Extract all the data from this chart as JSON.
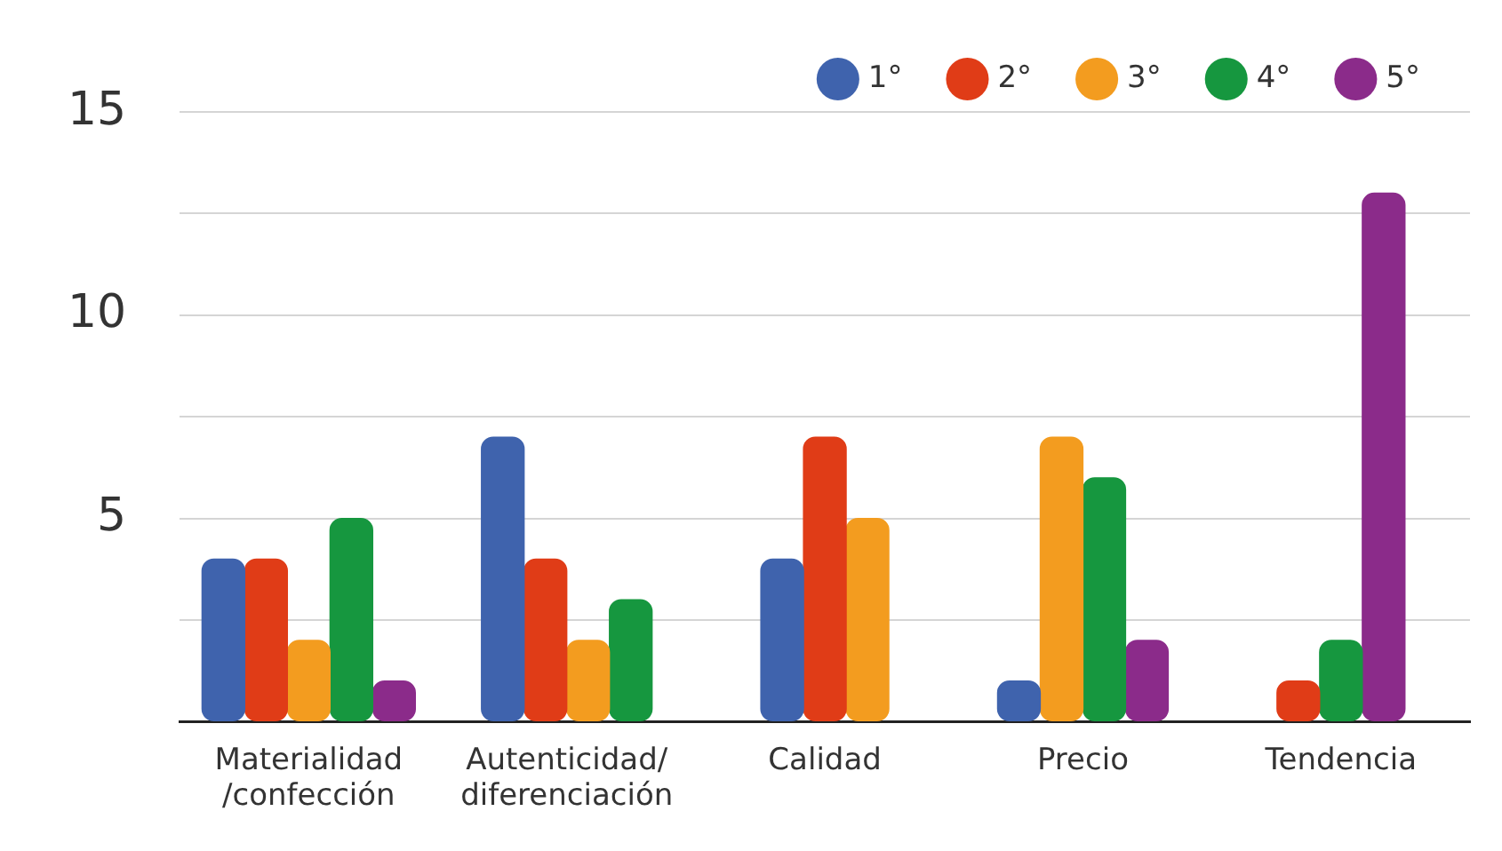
{
  "chart_data": {
    "type": "bar",
    "categories": [
      "Materialidad /confección",
      "Autenticidad/ diferenciación",
      "Calidad",
      "Precio",
      "Tendencia"
    ],
    "series": [
      {
        "name": "1°",
        "color": "#3f63ad",
        "values": [
          4,
          7,
          4,
          1,
          null
        ]
      },
      {
        "name": "2°",
        "color": "#e03c17",
        "values": [
          4,
          4,
          7,
          null,
          1
        ]
      },
      {
        "name": "3°",
        "color": "#f39c1f",
        "values": [
          2,
          2,
          5,
          7,
          null
        ]
      },
      {
        "name": "4°",
        "color": "#16973f",
        "values": [
          5,
          3,
          null,
          6,
          2
        ]
      },
      {
        "name": "5°",
        "color": "#8b2b8a",
        "values": [
          1,
          null,
          null,
          2,
          13
        ]
      }
    ],
    "ylim": [
      0,
      15
    ],
    "yticks": [
      {
        "value": 0,
        "label": null
      },
      {
        "value": 2.5,
        "label": null
      },
      5,
      {
        "value": 7.5,
        "label": null
      },
      10,
      {
        "value": 12.5,
        "label": null
      },
      15
    ],
    "grid": "y",
    "legend": "top right"
  }
}
